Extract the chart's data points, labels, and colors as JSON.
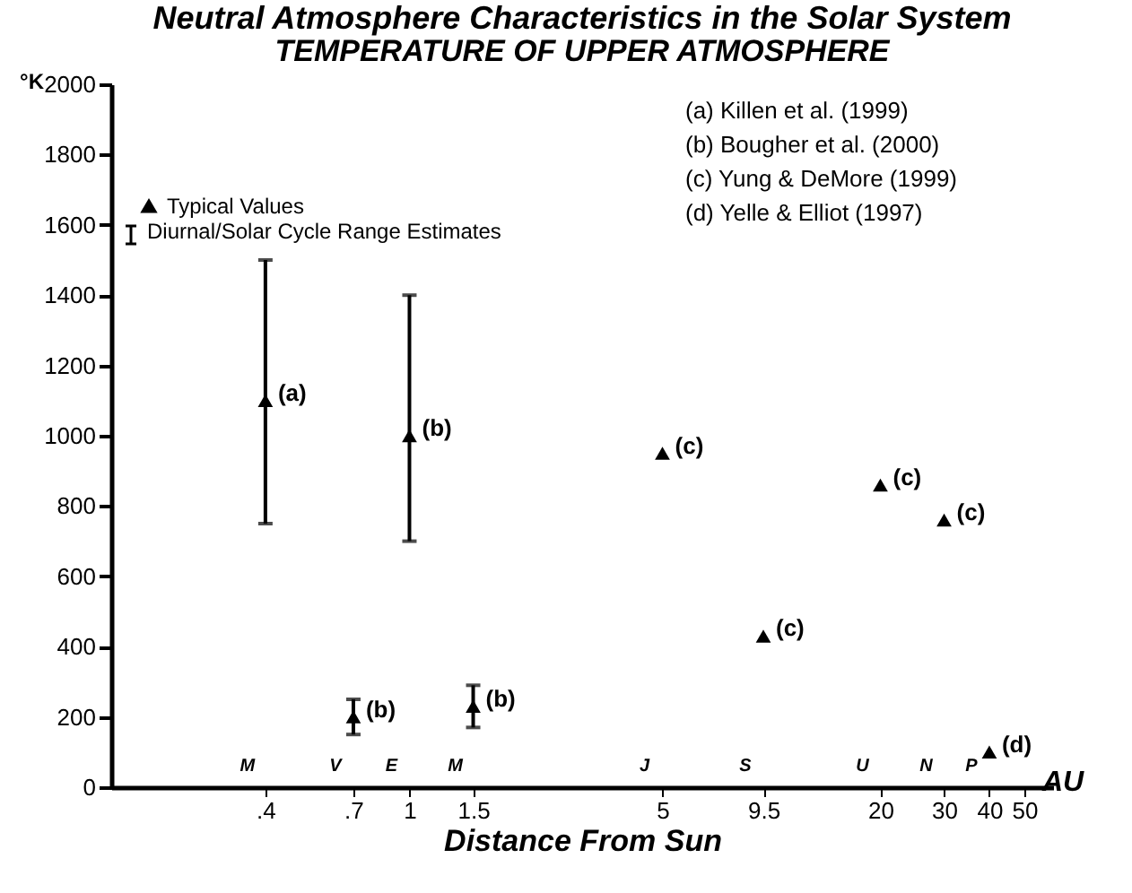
{
  "chart_data": {
    "type": "scatter",
    "title": "Neutral Atmosphere Characteristics in the Solar System",
    "subtitle": "TEMPERATURE OF UPPER ATMOSPHERE",
    "xlabel": "Distance From Sun",
    "ylabel": "°K",
    "log": "x",
    "marker": "triangle",
    "legend": "top left",
    "grid": false,
    "x": [
      0.4,
      0.7,
      1,
      1.5,
      5,
      9.5,
      20,
      30,
      40
    ],
    "series": [
      {
        "name": "Typical Values",
        "color": "#000000",
        "values": [
          1100,
          200,
          1000,
          230,
          950,
          430,
          860,
          760,
          100
        ],
        "errors": [
          [
            750,
            1500
          ],
          [
            150,
            250
          ],
          [
            700,
            1400
          ],
          [
            170,
            290
          ],
          null,
          null,
          null,
          null,
          null
        ]
      }
    ],
    "xlim": [
      0.15,
      60
    ],
    "xticks": [
      {
        "value": 0.4,
        "label": ".4"
      },
      {
        "value": 0.7,
        "label": ".7"
      },
      1,
      1.5,
      5,
      9.5,
      20,
      30,
      40,
      50
    ],
    "ylim": [
      0,
      2000
    ],
    "yticks": [
      0,
      200,
      400,
      600,
      800,
      1000,
      1200,
      1400,
      1600,
      1800,
      2000
    ],
    "annotations": [
      "Diurnal/Solar Cycle Range Estimates",
      "(a) Killen et al. (1999)",
      "(b) Bougher et al. (2000)",
      "(c) Yung & DeMore (1999)",
      "(d) Yelle & Elliot (1997)",
      "AU",
      "M",
      "V",
      "E",
      "M",
      "J",
      "S",
      "U",
      "N",
      "P",
      {
        "text": "(a)",
        "x": 0.4,
        "y": 1100
      },
      {
        "text": "(b)",
        "x": 0.7,
        "y": 200
      },
      {
        "text": "(b)",
        "x": 1,
        "y": 1000
      },
      {
        "text": "(b)",
        "x": 1.5,
        "y": 230
      },
      {
        "text": "(c)",
        "x": 5,
        "y": 950
      },
      {
        "text": "(c)",
        "x": 9.5,
        "y": 430
      },
      {
        "text": "(c)",
        "x": 20,
        "y": 860
      },
      {
        "text": "(c)",
        "x": 30,
        "y": 760
      },
      {
        "text": "(d)",
        "x": 40,
        "y": 100
      }
    ]
  }
}
